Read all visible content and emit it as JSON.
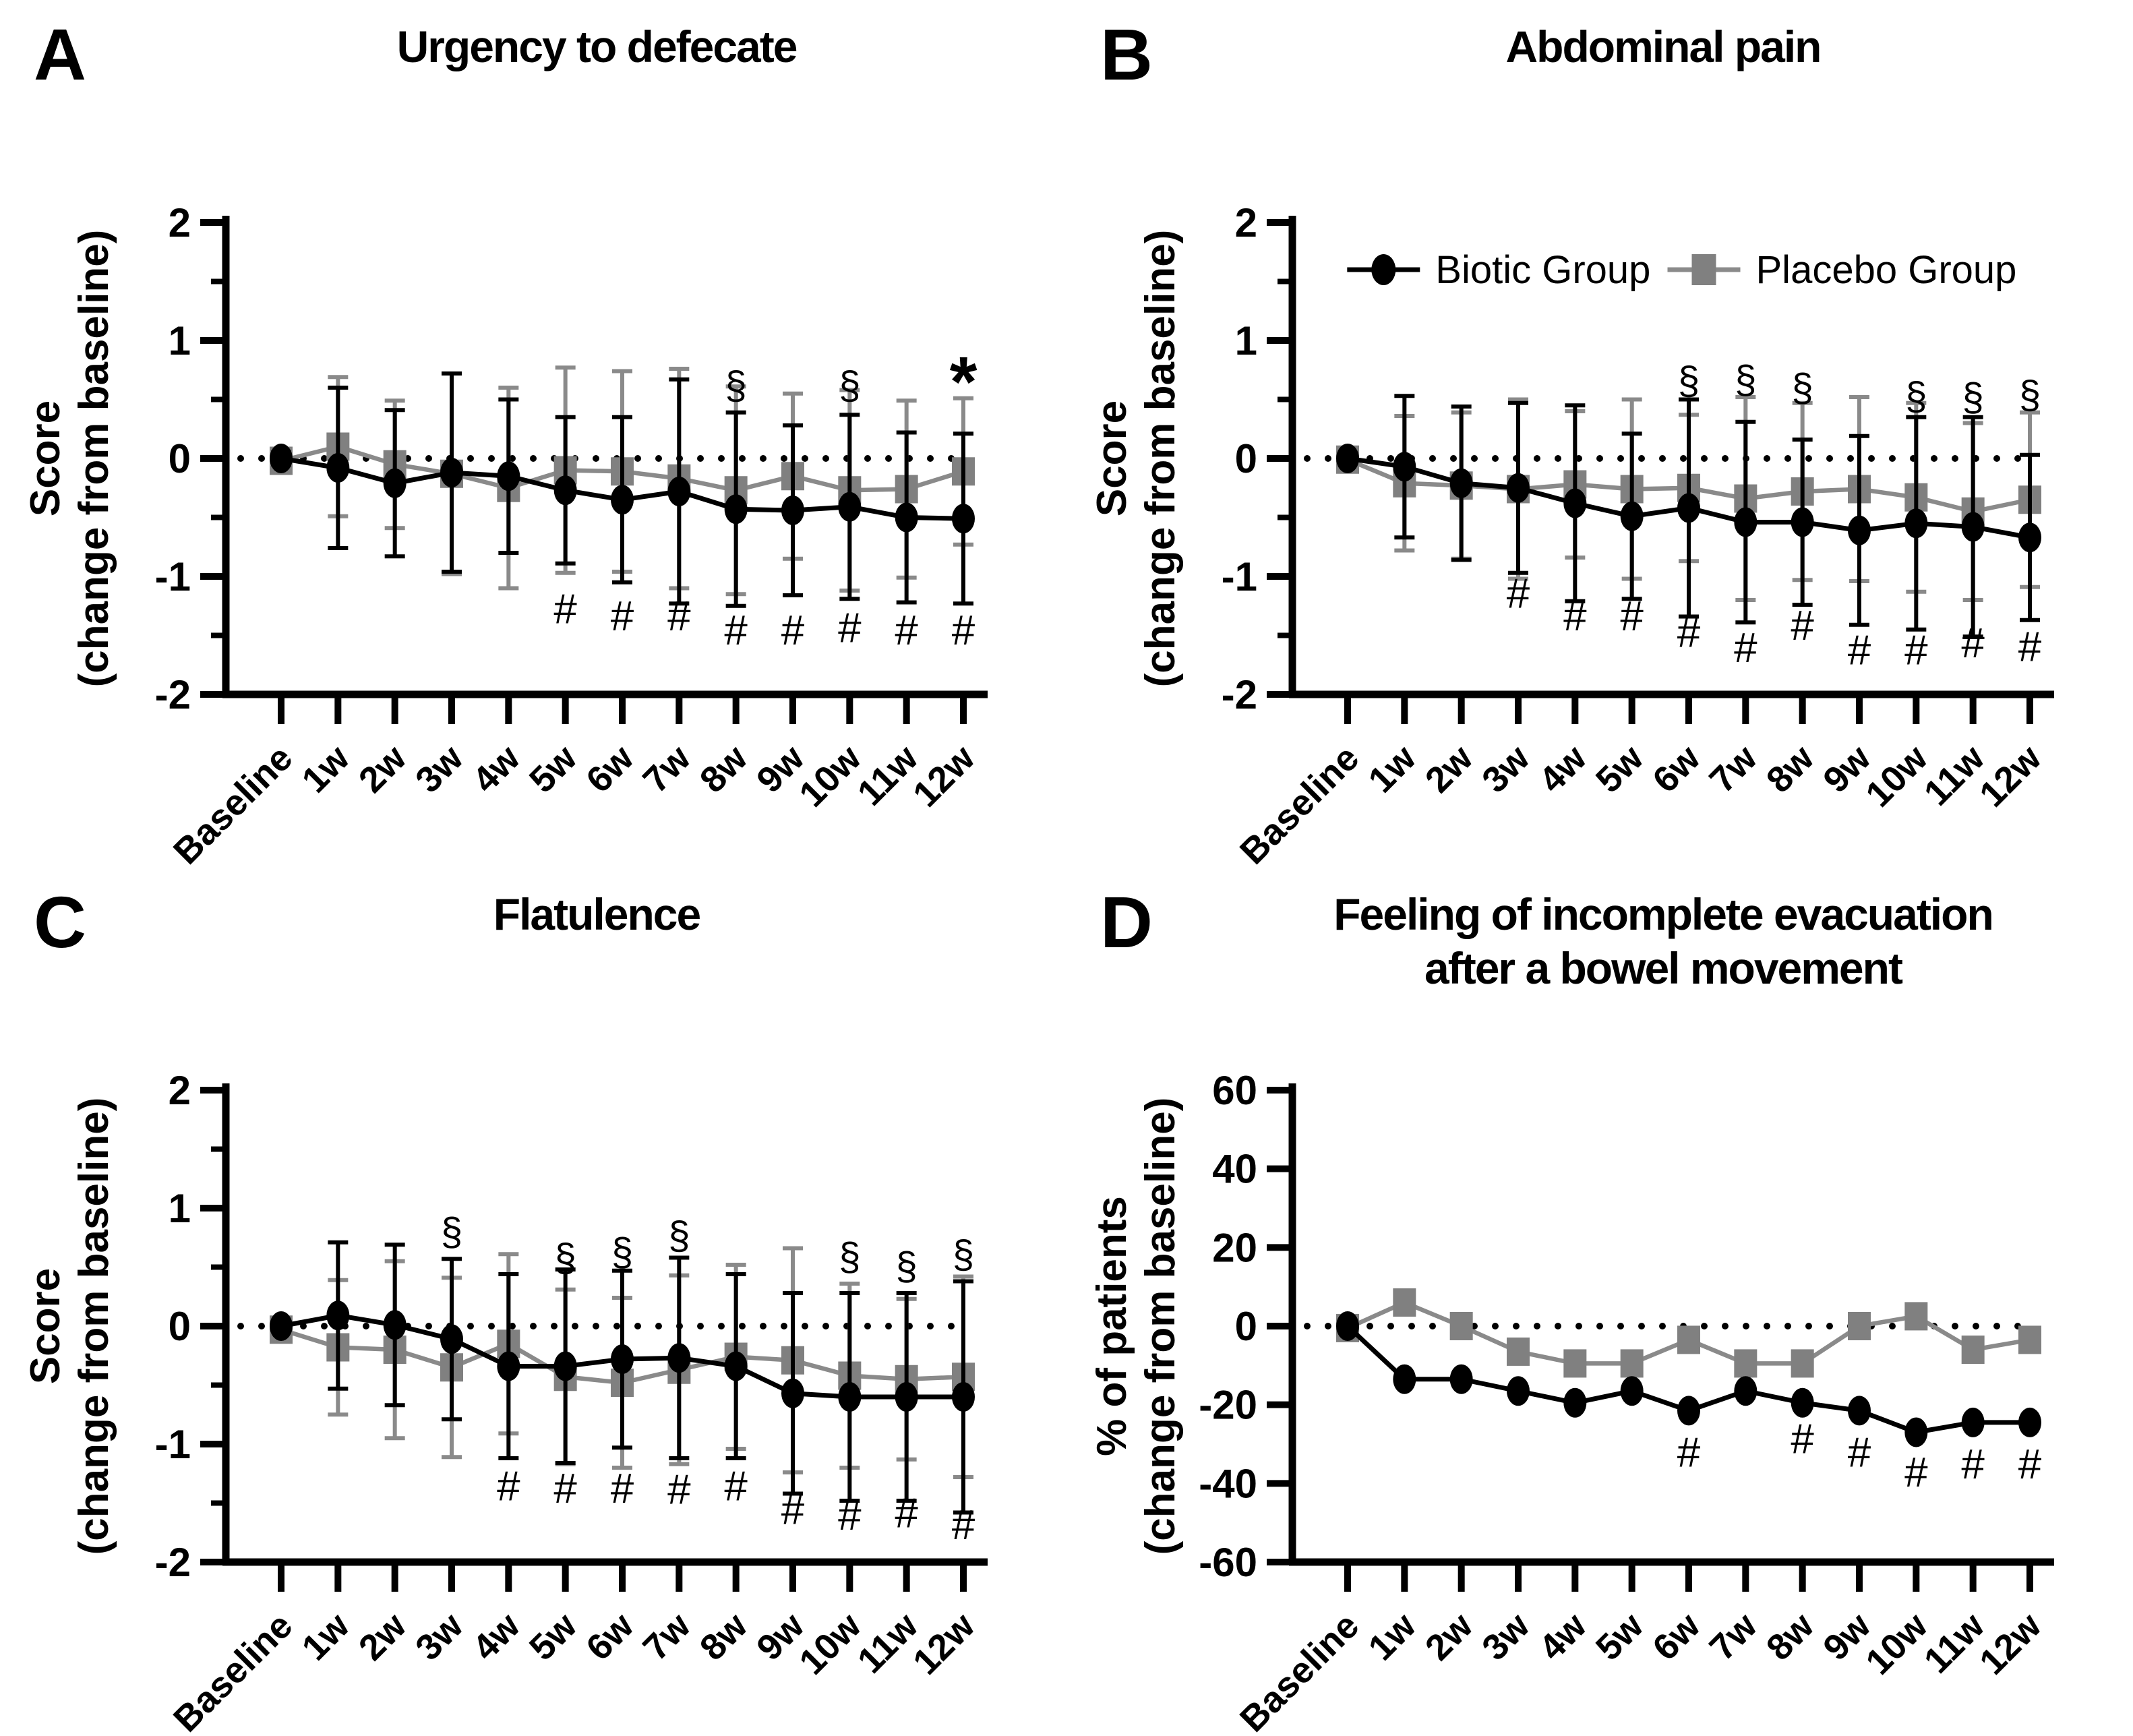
{
  "figure": {
    "panels": [
      "A",
      "B",
      "C",
      "D"
    ],
    "colors": {
      "black": "#000000",
      "gray": "#808080",
      "gray_line": "#8a8a8a"
    },
    "symbols": {
      "hash": "#",
      "section": "§",
      "star": "*"
    }
  },
  "chart_data": [
    {
      "id": "A",
      "panel_label": "A",
      "type": "line",
      "title": [
        "Urgency to defecate"
      ],
      "ylabel": [
        "Score",
        "(change from baseline)"
      ],
      "ylim": [
        -2,
        2
      ],
      "yticks": [
        {
          "v": 2,
          "label": "2"
        },
        {
          "v": 1,
          "label": "1"
        },
        {
          "v": 0,
          "label": "0"
        },
        {
          "v": -1,
          "label": "-1"
        },
        {
          "v": -2,
          "label": "-2"
        }
      ],
      "yminor": [
        1.5,
        0.5,
        -0.5,
        -1.5
      ],
      "zero_line": true,
      "categories": [
        "Baseline",
        "1w",
        "2w",
        "3w",
        "4w",
        "5w",
        "6w",
        "7w",
        "8w",
        "9w",
        "10w",
        "11w",
        "12w"
      ],
      "series": [
        {
          "name": "Biotic Group",
          "marker": "circle",
          "color": "#000000",
          "values": [
            0,
            -0.08,
            -0.21,
            -0.12,
            -0.15,
            -0.27,
            -0.35,
            -0.28,
            -0.43,
            -0.44,
            -0.41,
            -0.5,
            -0.51
          ],
          "sd": [
            0.05,
            0.68,
            0.62,
            0.84,
            0.65,
            0.62,
            0.7,
            0.95,
            0.82,
            0.72,
            0.78,
            0.72,
            0.72
          ]
        },
        {
          "name": "Placebo Group",
          "marker": "square",
          "color": "#808080",
          "line_color": "#8a8a8a",
          "values": [
            -0.02,
            0.1,
            -0.05,
            -0.13,
            -0.25,
            -0.1,
            -0.11,
            -0.17,
            -0.27,
            -0.15,
            -0.27,
            -0.26,
            -0.11
          ],
          "sd": [
            0.07,
            0.59,
            0.54,
            0.85,
            0.85,
            0.87,
            0.85,
            0.93,
            0.88,
            0.7,
            0.85,
            0.75,
            0.62
          ]
        }
      ],
      "annotations": [
        {
          "sym": "#",
          "cat": "5w",
          "y": -1.27
        },
        {
          "sym": "#",
          "cat": "6w",
          "y": -1.33
        },
        {
          "sym": "#",
          "cat": "7w",
          "y": -1.33
        },
        {
          "sym": "#",
          "cat": "8w",
          "y": -1.45
        },
        {
          "sym": "#",
          "cat": "9w",
          "y": -1.45
        },
        {
          "sym": "#",
          "cat": "10w",
          "y": -1.43
        },
        {
          "sym": "#",
          "cat": "11w",
          "y": -1.45
        },
        {
          "sym": "#",
          "cat": "12w",
          "y": -1.45
        },
        {
          "sym": "§",
          "cat": "8w",
          "y": 0.62
        },
        {
          "sym": "§",
          "cat": "10w",
          "y": 0.62
        },
        {
          "sym": "*",
          "cat": "12w",
          "y": 0.88
        }
      ]
    },
    {
      "id": "B",
      "panel_label": "B",
      "type": "line",
      "title": [
        "Abdominal pain"
      ],
      "ylabel": [
        "Score",
        "(change from baseline)"
      ],
      "ylim": [
        -2,
        2
      ],
      "yticks": [
        {
          "v": 2,
          "label": "2"
        },
        {
          "v": 1,
          "label": "1"
        },
        {
          "v": 0,
          "label": "0"
        },
        {
          "v": -1,
          "label": "-1"
        },
        {
          "v": -2,
          "label": "-2"
        }
      ],
      "yminor": [
        1.5,
        0.5,
        -0.5,
        -1.5
      ],
      "zero_line": true,
      "categories": [
        "Baseline",
        "1w",
        "2w",
        "3w",
        "4w",
        "5w",
        "6w",
        "7w",
        "8w",
        "9w",
        "10w",
        "11w",
        "12w"
      ],
      "series": [
        {
          "name": "Biotic Group",
          "marker": "circle",
          "color": "#000000",
          "values": [
            0,
            -0.07,
            -0.21,
            -0.25,
            -0.38,
            -0.49,
            -0.42,
            -0.54,
            -0.54,
            -0.61,
            -0.55,
            -0.58,
            -0.67
          ],
          "sd": [
            0.04,
            0.6,
            0.65,
            0.72,
            0.83,
            0.7,
            0.92,
            0.85,
            0.7,
            0.8,
            0.9,
            0.93,
            0.7
          ]
        },
        {
          "name": "Placebo Group",
          "marker": "square",
          "color": "#808080",
          "line_color": "#8a8a8a",
          "values": [
            -0.01,
            -0.21,
            -0.23,
            -0.26,
            -0.22,
            -0.26,
            -0.25,
            -0.34,
            -0.28,
            -0.26,
            -0.33,
            -0.45,
            -0.35
          ],
          "sd": [
            0.06,
            0.57,
            0.62,
            0.76,
            0.62,
            0.76,
            0.62,
            0.86,
            0.75,
            0.78,
            0.8,
            0.75,
            0.74
          ]
        }
      ],
      "legend": {
        "y": 1.6,
        "marker_fx": [
          0.123,
          0.555
        ],
        "text_fx": [
          0.193,
          0.625
        ],
        "entries": [
          {
            "label": "Biotic Group",
            "marker": "circle",
            "color": "#000000"
          },
          {
            "label": "Placebo Group",
            "marker": "square",
            "color": "#808080"
          }
        ]
      },
      "annotations": [
        {
          "sym": "#",
          "cat": "3w",
          "y": -1.14
        },
        {
          "sym": "#",
          "cat": "4w",
          "y": -1.33
        },
        {
          "sym": "#",
          "cat": "5w",
          "y": -1.33
        },
        {
          "sym": "#",
          "cat": "6w",
          "y": -1.47
        },
        {
          "sym": "#",
          "cat": "7w",
          "y": -1.6
        },
        {
          "sym": "#",
          "cat": "8w",
          "y": -1.41
        },
        {
          "sym": "#",
          "cat": "9w",
          "y": -1.62
        },
        {
          "sym": "#",
          "cat": "10w",
          "y": -1.62
        },
        {
          "sym": "#",
          "cat": "11w",
          "y": -1.56
        },
        {
          "sym": "#",
          "cat": "12w",
          "y": -1.59
        },
        {
          "sym": "§",
          "cat": "6w",
          "y": 0.66
        },
        {
          "sym": "§",
          "cat": "7w",
          "y": 0.67
        },
        {
          "sym": "§",
          "cat": "8w",
          "y": 0.6
        },
        {
          "sym": "§",
          "cat": "10w",
          "y": 0.53
        },
        {
          "sym": "§",
          "cat": "11w",
          "y": 0.52
        },
        {
          "sym": "§",
          "cat": "12w",
          "y": 0.54
        }
      ]
    },
    {
      "id": "C",
      "panel_label": "C",
      "type": "line",
      "title": [
        "Flatulence"
      ],
      "ylabel": [
        "Score",
        "(change from baseline)"
      ],
      "ylim": [
        -2,
        2
      ],
      "yticks": [
        {
          "v": 2,
          "label": "2"
        },
        {
          "v": 1,
          "label": "1"
        },
        {
          "v": 0,
          "label": "0"
        },
        {
          "v": -1,
          "label": "-1"
        },
        {
          "v": -2,
          "label": "-2"
        }
      ],
      "yminor": [
        1.5,
        0.5,
        -0.5,
        -1.5
      ],
      "zero_line": true,
      "categories": [
        "Baseline",
        "1w",
        "2w",
        "3w",
        "4w",
        "5w",
        "6w",
        "7w",
        "8w",
        "9w",
        "10w",
        "11w",
        "12w"
      ],
      "series": [
        {
          "name": "Biotic Group",
          "marker": "circle",
          "color": "#000000",
          "values": [
            0,
            0.09,
            0.01,
            -0.11,
            -0.34,
            -0.34,
            -0.28,
            -0.27,
            -0.34,
            -0.57,
            -0.6,
            -0.6,
            -0.6
          ],
          "sd": [
            0.04,
            0.62,
            0.68,
            0.68,
            0.78,
            0.82,
            0.75,
            0.85,
            0.78,
            0.85,
            0.88,
            0.88,
            0.98
          ]
        },
        {
          "name": "Placebo Group",
          "marker": "square",
          "color": "#808080",
          "line_color": "#8a8a8a",
          "values": [
            -0.03,
            -0.18,
            -0.2,
            -0.35,
            -0.15,
            -0.43,
            -0.48,
            -0.37,
            -0.26,
            -0.29,
            -0.42,
            -0.45,
            -0.43
          ],
          "sd": [
            0.06,
            0.57,
            0.75,
            0.76,
            0.76,
            0.74,
            0.72,
            0.8,
            0.78,
            0.95,
            0.78,
            0.68,
            0.85
          ]
        }
      ],
      "annotations": [
        {
          "sym": "#",
          "cat": "4w",
          "y": -1.35
        },
        {
          "sym": "#",
          "cat": "5w",
          "y": -1.37
        },
        {
          "sym": "#",
          "cat": "6w",
          "y": -1.37
        },
        {
          "sym": "#",
          "cat": "7w",
          "y": -1.38
        },
        {
          "sym": "#",
          "cat": "8w",
          "y": -1.35
        },
        {
          "sym": "#",
          "cat": "9w",
          "y": -1.55
        },
        {
          "sym": "#",
          "cat": "10w",
          "y": -1.6
        },
        {
          "sym": "#",
          "cat": "11w",
          "y": -1.58
        },
        {
          "sym": "#",
          "cat": "12w",
          "y": -1.68
        },
        {
          "sym": "§",
          "cat": "3w",
          "y": 0.8
        },
        {
          "sym": "§",
          "cat": "5w",
          "y": 0.58
        },
        {
          "sym": "§",
          "cat": "6w",
          "y": 0.63
        },
        {
          "sym": "§",
          "cat": "7w",
          "y": 0.77
        },
        {
          "sym": "§",
          "cat": "10w",
          "y": 0.59
        },
        {
          "sym": "§",
          "cat": "11w",
          "y": 0.51
        },
        {
          "sym": "§",
          "cat": "12w",
          "y": 0.61
        }
      ]
    },
    {
      "id": "D",
      "panel_label": "D",
      "type": "line",
      "title": [
        "Feeling of incomplete evacuation",
        "after a bowel movement"
      ],
      "ylabel": [
        "% of patients",
        "(change from baseline)"
      ],
      "ylim": [
        -60,
        60
      ],
      "yticks": [
        {
          "v": 60,
          "label": "60"
        },
        {
          "v": 40,
          "label": "40"
        },
        {
          "v": 20,
          "label": "20"
        },
        {
          "v": 0,
          "label": "0"
        },
        {
          "v": -20,
          "label": "-20"
        },
        {
          "v": -40,
          "label": "-40"
        },
        {
          "v": -60,
          "label": "-60"
        }
      ],
      "yminor": [],
      "zero_line": true,
      "categories": [
        "Baseline",
        "1w",
        "2w",
        "3w",
        "4w",
        "5w",
        "6w",
        "7w",
        "8w",
        "9w",
        "10w",
        "11w",
        "12w"
      ],
      "series": [
        {
          "name": "Biotic Group",
          "marker": "circle",
          "color": "#000000",
          "values": [
            0,
            -13.5,
            -13.5,
            -16.5,
            -19.5,
            -16.5,
            -21.5,
            -16.5,
            -19.5,
            -21.5,
            -27,
            -24.5,
            -24.5
          ]
        },
        {
          "name": "Placebo Group",
          "marker": "square",
          "color": "#808080",
          "line_color": "#8a8a8a",
          "values": [
            -0.5,
            6,
            0,
            -6.5,
            -9.5,
            -9.5,
            -3.5,
            -9.5,
            -9.5,
            0,
            2.5,
            -6,
            -3.5
          ]
        }
      ],
      "annotations": [
        {
          "sym": "#",
          "cat": "6w",
          "y": -32
        },
        {
          "sym": "#",
          "cat": "8w",
          "y": -28.5
        },
        {
          "sym": "#",
          "cat": "9w",
          "y": -32
        },
        {
          "sym": "#",
          "cat": "10w",
          "y": -37
        },
        {
          "sym": "#",
          "cat": "11w",
          "y": -35
        },
        {
          "sym": "#",
          "cat": "12w",
          "y": -35
        }
      ]
    }
  ]
}
